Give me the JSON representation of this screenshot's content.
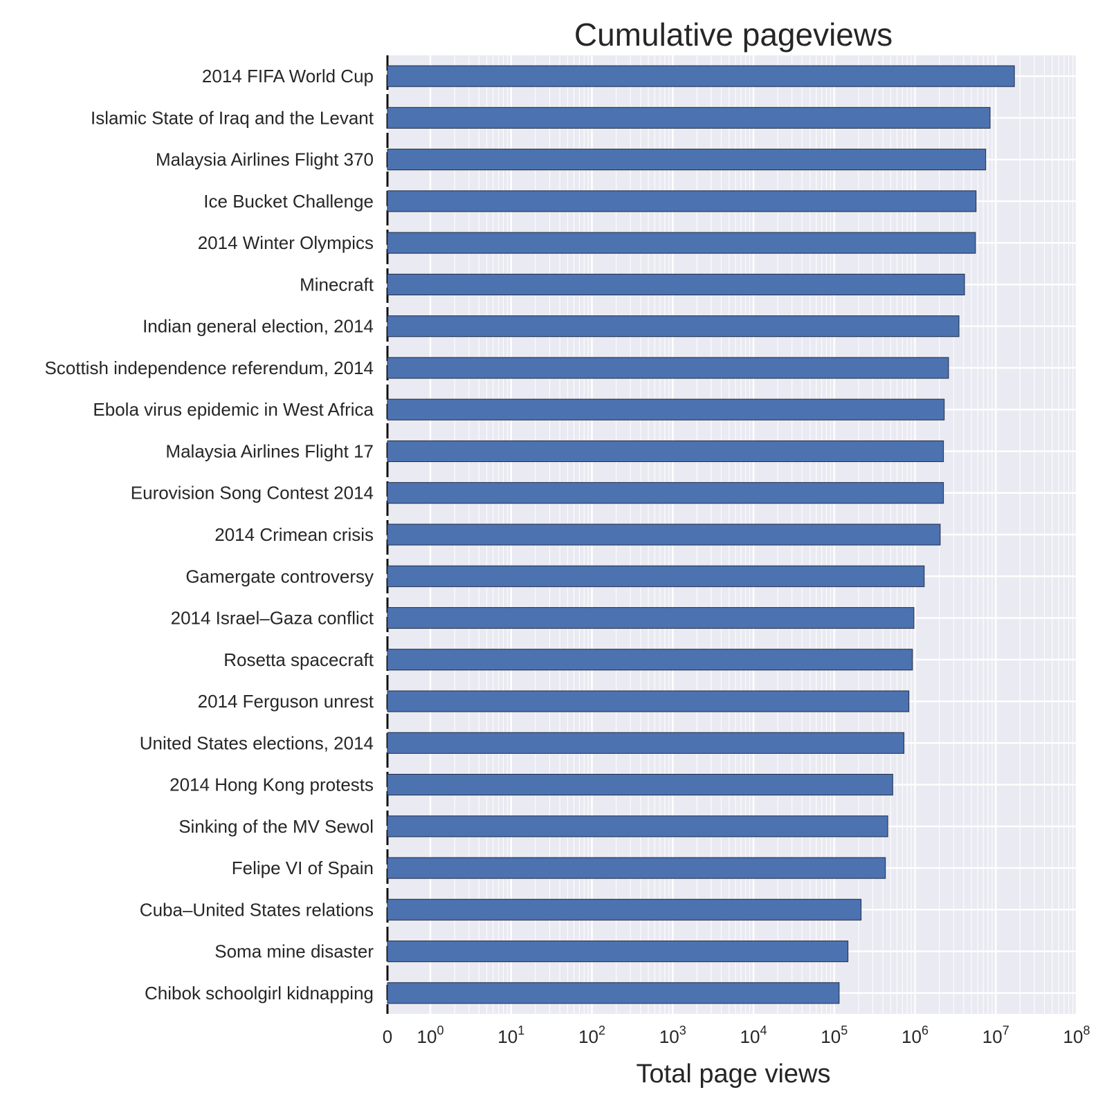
{
  "chart_data": {
    "type": "bar",
    "orientation": "horizontal",
    "title": "Cumulative pageviews",
    "xlabel": "Total page views",
    "ylabel": "",
    "xscale": "symlog",
    "xlim": [
      0,
      100000000
    ],
    "grid": true,
    "legend": "none",
    "categories": [
      "2014 FIFA World Cup",
      "Islamic State of Iraq and the Levant",
      "Malaysia Airlines Flight 370",
      "Ice Bucket Challenge",
      "2014 Winter Olympics",
      "Minecraft",
      "Indian general election, 2014",
      "Scottish independence referendum, 2014",
      "Ebola virus epidemic in West Africa",
      "Malaysia Airlines Flight 17",
      "Eurovision Song Contest 2014",
      "2014 Crimean crisis",
      "Gamergate controversy",
      "2014 Israel–Gaza conflict",
      "Rosetta spacecraft",
      "2014 Ferguson unrest",
      "United States elections, 2014",
      "2014 Hong Kong protests",
      "Sinking of the MV Sewol",
      "Felipe VI of Spain",
      "Cuba–United States relations",
      "Soma mine disaster",
      "Chibok schoolgirl kidnapping"
    ],
    "values": [
      17000000,
      8500000,
      7500000,
      5700000,
      5600000,
      4100000,
      3500000,
      2600000,
      2300000,
      2250000,
      2250000,
      2050000,
      1300000,
      970000,
      930000,
      840000,
      730000,
      530000,
      460000,
      430000,
      215000,
      148000,
      115000
    ],
    "x_ticks": [
      {
        "label": "0",
        "value": 0,
        "exp": ""
      },
      {
        "label": "10",
        "value": 1,
        "exp": "0"
      },
      {
        "label": "10",
        "value": 10,
        "exp": "1"
      },
      {
        "label": "10",
        "value": 100,
        "exp": "2"
      },
      {
        "label": "10",
        "value": 1000,
        "exp": "3"
      },
      {
        "label": "10",
        "value": 10000,
        "exp": "4"
      },
      {
        "label": "10",
        "value": 100000,
        "exp": "5"
      },
      {
        "label": "10",
        "value": 1000000,
        "exp": "6"
      },
      {
        "label": "10",
        "value": 10000000,
        "exp": "7"
      },
      {
        "label": "10",
        "value": 100000000,
        "exp": "8"
      }
    ],
    "colors": {
      "bar": "#4c72b0",
      "background": "#eaeaf2",
      "grid": "#ffffff",
      "text": "#262626"
    }
  }
}
